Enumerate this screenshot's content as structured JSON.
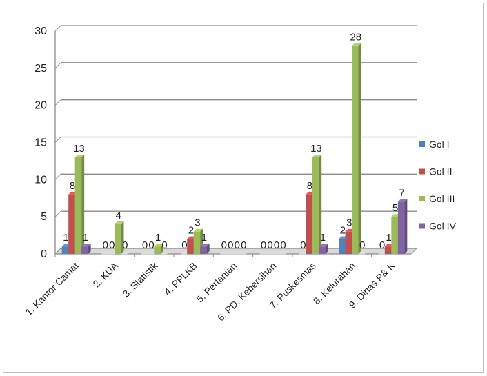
{
  "chart_data": {
    "type": "bar",
    "title": "",
    "xlabel": "",
    "ylabel": "",
    "ylim": [
      0,
      30
    ],
    "yticks": [
      "0",
      "5",
      "10",
      "15",
      "20",
      "25",
      "30"
    ],
    "grid": true,
    "legend_position": "right",
    "categories": [
      "1. Kantor Camat",
      "2. KUA",
      "3. Statistik",
      "4. PPLKB",
      "5. Pertanian",
      "6. PD. Kebersihan",
      "7. Puskesmas",
      "8. Kelurahan",
      "9. Dinas P& K"
    ],
    "series": [
      {
        "name": "Gol I",
        "color": "#4f81bd",
        "values": [
          1,
          0,
          0,
          0,
          0,
          0,
          0,
          2,
          0
        ]
      },
      {
        "name": "Gol II",
        "color": "#c0504d",
        "values": [
          8,
          0,
          0,
          2,
          0,
          0,
          8,
          3,
          1
        ]
      },
      {
        "name": "Gol III",
        "color": "#9bbb59",
        "values": [
          13,
          4,
          1,
          3,
          0,
          0,
          13,
          28,
          5
        ]
      },
      {
        "name": "Gol IV",
        "color": "#8064a2",
        "values": [
          1,
          0,
          0,
          1,
          0,
          0,
          1,
          0,
          7
        ]
      }
    ]
  }
}
